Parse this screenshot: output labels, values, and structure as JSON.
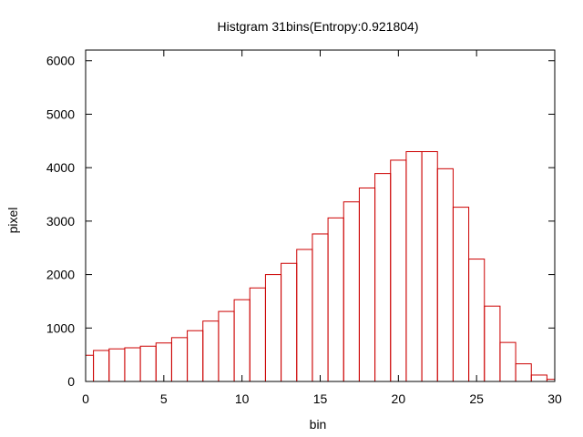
{
  "chart_data": {
    "type": "bar",
    "title": "Histgram 31bins(Entropy:0.921804)",
    "xlabel": "bin",
    "ylabel": "pixel",
    "xlim": [
      0,
      30
    ],
    "ylim": [
      0,
      6200
    ],
    "xticks": [
      0,
      5,
      10,
      15,
      20,
      25,
      30
    ],
    "yticks": [
      0,
      1000,
      2000,
      3000,
      4000,
      5000,
      6000
    ],
    "x": [
      0,
      1,
      2,
      3,
      4,
      5,
      6,
      7,
      8,
      9,
      10,
      11,
      12,
      13,
      14,
      15,
      16,
      17,
      18,
      19,
      20,
      21,
      22,
      23,
      24,
      25,
      26,
      27,
      28,
      29,
      30
    ],
    "values": [
      490,
      580,
      610,
      630,
      660,
      720,
      820,
      950,
      1130,
      1310,
      1530,
      1750,
      2000,
      2210,
      2470,
      2760,
      3060,
      3360,
      3620,
      3890,
      4140,
      4300,
      4300,
      3980,
      3260,
      2290,
      1410,
      730,
      330,
      120,
      40
    ],
    "bar_color": "#cc0000",
    "grid": false,
    "legend": "none"
  }
}
